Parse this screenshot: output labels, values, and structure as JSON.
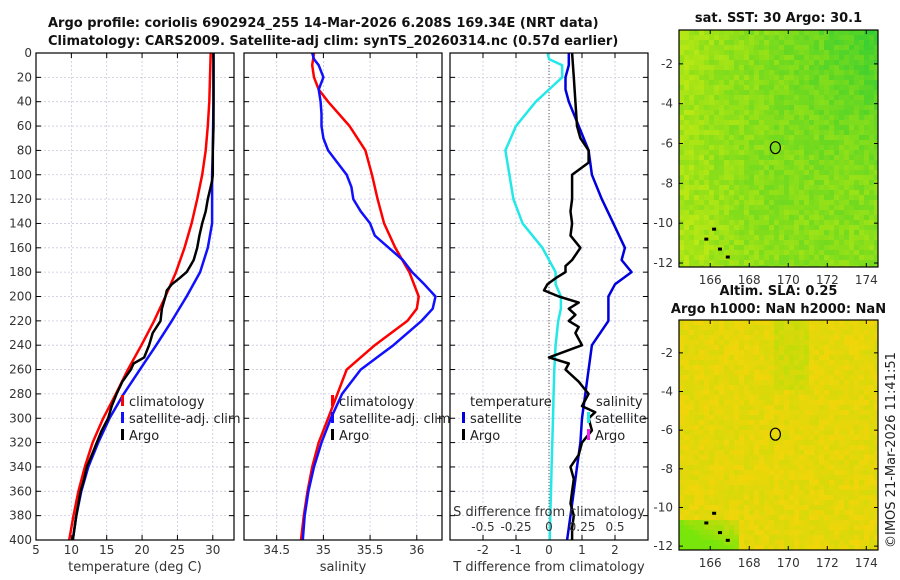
{
  "header": {
    "line1": "Argo profile: coriolis 6902924_255 14-Mar-2026 6.208S 169.34E (NRT data)",
    "line2": "Climatology: CARS2009. Satellite-adj clim: synTS_20260314.nc (0.57d earlier)"
  },
  "colors": {
    "climatology": "#ff0000",
    "satellite": "#1010ff",
    "argo": "#000000",
    "t_diff_satellite": "#0000dd",
    "s_diff_satellite": "#22e8e8",
    "s_diff_argo": "#ee22ee"
  },
  "chart_data": [
    {
      "type": "line",
      "id": "temperature",
      "xlabel": "temperature (deg C)",
      "ylabel": "",
      "xlim": [
        5,
        33
      ],
      "ylim": [
        400,
        0
      ],
      "xticks": [
        "5",
        "10",
        "15",
        "20",
        "25",
        "30"
      ],
      "xtick_values": [
        5,
        10,
        15,
        20,
        25,
        30
      ],
      "yticks": [
        "0",
        "20",
        "40",
        "60",
        "80",
        "100",
        "120",
        "140",
        "160",
        "180",
        "200",
        "220",
        "240",
        "260",
        "280",
        "300",
        "320",
        "340",
        "360",
        "380",
        "400"
      ],
      "grid": true,
      "legend": {
        "placement": "center-right",
        "entries": [
          "climatology",
          "satellite-adj. clim",
          "Argo"
        ]
      },
      "series": [
        {
          "name": "climatology",
          "color_key": "climatology",
          "depth": [
            0,
            20,
            40,
            60,
            80,
            100,
            120,
            140,
            160,
            180,
            200,
            220,
            240,
            260,
            280,
            300,
            320,
            340,
            360,
            380,
            400
          ],
          "values": [
            29.7,
            29.6,
            29.5,
            29.3,
            29.0,
            28.5,
            27.8,
            27.0,
            26.0,
            24.8,
            23.3,
            21.7,
            19.9,
            18.0,
            16.3,
            14.5,
            13.0,
            11.9,
            11.0,
            10.3,
            9.7
          ]
        },
        {
          "name": "satellite-adj. clim",
          "color_key": "satellite",
          "depth": [
            0,
            20,
            40,
            60,
            80,
            100,
            120,
            140,
            160,
            180,
            200,
            220,
            240,
            260,
            280,
            300,
            320,
            340,
            360,
            380,
            400
          ],
          "values": [
            30.1,
            30.1,
            30.1,
            30.05,
            30.0,
            29.9,
            29.9,
            29.9,
            29.3,
            28.2,
            26.3,
            24.2,
            22.0,
            19.7,
            17.4,
            15.4,
            13.8,
            12.4,
            11.4,
            10.7,
            10.2
          ]
        },
        {
          "name": "Argo",
          "color_key": "argo",
          "depth": [
            0,
            20,
            40,
            60,
            80,
            100,
            105,
            110,
            120,
            130,
            140,
            150,
            160,
            170,
            175,
            180,
            185,
            190,
            195,
            200,
            210,
            220,
            230,
            240,
            250,
            255,
            260,
            270,
            280,
            290,
            300,
            310,
            320,
            330,
            340,
            350,
            360,
            380,
            400
          ],
          "values": [
            30.1,
            30.1,
            30.1,
            30.1,
            30.0,
            30.0,
            29.9,
            29.7,
            29.3,
            29.0,
            28.5,
            28.1,
            27.8,
            27.3,
            26.8,
            26.3,
            25.3,
            24.2,
            23.5,
            23.3,
            22.8,
            22.6,
            21.5,
            21.0,
            20.3,
            18.8,
            18.4,
            17.2,
            16.4,
            15.7,
            15.2,
            14.3,
            13.6,
            12.9,
            12.2,
            11.8,
            11.3,
            10.7,
            10.2
          ]
        }
      ]
    },
    {
      "type": "line",
      "id": "salinity",
      "xlabel": "salinity",
      "xlim": [
        34.15,
        36.27
      ],
      "ylim": [
        400,
        0
      ],
      "xticks": [
        "34.5",
        "35",
        "35.5",
        "36"
      ],
      "xtick_values": [
        34.5,
        35,
        35.5,
        36
      ],
      "grid": true,
      "legend": {
        "placement": "center-left",
        "entries": [
          "climatology",
          "satellite-adj. clim",
          "Argo"
        ]
      },
      "series": [
        {
          "name": "climatology",
          "color_key": "climatology",
          "depth": [
            0,
            10,
            20,
            30,
            40,
            60,
            80,
            100,
            120,
            140,
            160,
            180,
            200,
            210,
            220,
            240,
            260,
            280,
            300,
            320,
            340,
            360,
            380,
            400
          ],
          "values": [
            34.9,
            34.88,
            34.9,
            34.95,
            35.05,
            35.28,
            35.45,
            35.52,
            35.58,
            35.65,
            35.77,
            35.92,
            36.02,
            36.0,
            35.9,
            35.55,
            35.25,
            35.15,
            35.05,
            34.95,
            34.88,
            34.83,
            34.79,
            34.76
          ]
        },
        {
          "name": "satellite-adj. clim",
          "color_key": "satellite",
          "depth": [
            0,
            5,
            10,
            20,
            30,
            40,
            50,
            60,
            70,
            80,
            90,
            100,
            110,
            120,
            130,
            140,
            150,
            160,
            170,
            180,
            190,
            200,
            210,
            220,
            240,
            260,
            280,
            300,
            320,
            340,
            360,
            380,
            400
          ],
          "values": [
            34.88,
            34.9,
            34.95,
            35.0,
            34.95,
            34.97,
            34.98,
            34.98,
            35.0,
            35.05,
            35.15,
            35.25,
            35.3,
            35.32,
            35.4,
            35.5,
            35.55,
            35.7,
            35.85,
            35.95,
            36.08,
            36.2,
            36.17,
            36.05,
            35.75,
            35.4,
            35.2,
            35.08,
            34.98,
            34.9,
            34.84,
            34.8,
            34.78
          ]
        }
      ]
    },
    {
      "type": "line",
      "id": "differences",
      "xlabel": "T difference from climatology",
      "xlim": [
        -3.0,
        3.0
      ],
      "xticks": [
        "-2",
        "-1",
        "0",
        "1",
        "2"
      ],
      "xtick_values": [
        -2,
        -1,
        0,
        1,
        2
      ],
      "secondary_xlabel": "S difference from climatology",
      "secondary_xlim": [
        -0.75,
        0.75
      ],
      "secondary_xticks": [
        "-0.5",
        "-0.25",
        "0",
        "0.25",
        "0.5"
      ],
      "secondary_xtick_values": [
        -0.5,
        -0.25,
        0,
        0.25,
        0.5
      ],
      "ylim": [
        400,
        0
      ],
      "grid": true,
      "legend": {
        "placement": "center",
        "temperature_header": "temperature",
        "salinity_header": "salinity",
        "temperature_entries": [
          "satellite",
          "Argo"
        ],
        "salinity_entries": [
          "satellite",
          "Argo"
        ]
      },
      "series": [
        {
          "name": "T satellite",
          "color_key": "t_diff_satellite",
          "depth": [
            0,
            10,
            20,
            30,
            40,
            60,
            80,
            100,
            120,
            140,
            160,
            170,
            180,
            190,
            200,
            220,
            240,
            260,
            280,
            300,
            320,
            340,
            360,
            380,
            400
          ],
          "values": [
            0.6,
            0.6,
            0.5,
            0.5,
            0.6,
            0.9,
            1.2,
            1.3,
            1.6,
            1.95,
            2.3,
            2.2,
            2.5,
            2.0,
            1.8,
            1.8,
            1.3,
            1.2,
            1.1,
            1.0,
            0.95,
            0.85,
            0.75,
            0.65,
            0.55
          ]
        },
        {
          "name": "T Argo",
          "color_key": "argo",
          "depth": [
            0,
            20,
            40,
            60,
            70,
            80,
            90,
            100,
            110,
            120,
            130,
            140,
            150,
            160,
            170,
            175,
            180,
            185,
            190,
            195,
            200,
            205,
            210,
            215,
            220,
            225,
            230,
            240,
            250,
            255,
            260,
            270,
            280,
            290,
            295,
            300,
            310,
            320,
            330,
            340,
            350,
            360,
            370,
            380,
            390,
            400
          ],
          "values": [
            0.7,
            0.75,
            0.8,
            0.85,
            0.95,
            1.2,
            1.2,
            0.7,
            0.7,
            0.7,
            0.65,
            0.7,
            0.65,
            0.95,
            0.7,
            0.5,
            0.5,
            0.2,
            -0.05,
            -0.15,
            0.3,
            0.9,
            0.6,
            0.8,
            0.6,
            0.9,
            0.8,
            1.0,
            0.0,
            0.6,
            0.5,
            0.9,
            1.2,
            1.0,
            1.4,
            1.2,
            1.3,
            1.0,
            0.9,
            0.65,
            0.75,
            0.7,
            0.65,
            0.75,
            0.7,
            0.7
          ]
        },
        {
          "name": "S satellite",
          "color_key": "s_diff_satellite",
          "depth": [
            0,
            5,
            10,
            20,
            30,
            40,
            60,
            80,
            100,
            120,
            140,
            160,
            180,
            190,
            200,
            210,
            220,
            240,
            260,
            280,
            300,
            320,
            340,
            360,
            380,
            400
          ],
          "values": [
            -0.01,
            0.0,
            0.1,
            0.1,
            0.0,
            -0.1,
            -0.25,
            -0.33,
            -0.3,
            -0.27,
            -0.2,
            -0.05,
            0.05,
            0.05,
            0.09,
            0.09,
            0.07,
            0.05,
            0.04,
            0.035,
            0.03,
            0.025,
            0.02,
            0.015,
            0.01,
            0.005
          ]
        }
      ]
    },
    {
      "type": "heatmap",
      "id": "sst-map",
      "title": "sat. SST: 30 Argo: 30.1",
      "xticks": [
        "166",
        "168",
        "170",
        "172",
        "174"
      ],
      "xtick_values": [
        166,
        168,
        170,
        172,
        174
      ],
      "yticks": [
        "-2",
        "-4",
        "-6",
        "-8",
        "-10",
        "-12"
      ],
      "ytick_values": [
        -2,
        -4,
        -6,
        -8,
        -10,
        -12
      ],
      "xlim": [
        164.4,
        174.6
      ],
      "ylim": [
        -12.2,
        -0.3
      ],
      "marker": {
        "lon": 169.34,
        "lat": -6.208
      },
      "description": "satellite SST field; green in NE (cooler/warmer contrast), yellow-green elsewhere"
    },
    {
      "type": "heatmap",
      "id": "sla-map",
      "title": "Altim. SLA: 0.25",
      "subtitle": "Argo h1000: NaN h2000: NaN",
      "xticks": [
        "166",
        "168",
        "170",
        "172",
        "174"
      ],
      "xtick_values": [
        166,
        168,
        170,
        172,
        174
      ],
      "yticks": [
        "-2",
        "-4",
        "-6",
        "-8",
        "-10",
        "-12"
      ],
      "ytick_values": [
        -2,
        -4,
        -6,
        -8,
        -10,
        -12
      ],
      "xlim": [
        164.4,
        174.6
      ],
      "ylim": [
        -12.2,
        -0.3
      ],
      "marker": {
        "lon": 169.34,
        "lat": -6.208
      },
      "description": "sea level anomaly field; mostly yellow/orange, greenish at SW corner"
    }
  ],
  "footer": {
    "copyright": "©IMOS 21-Mar-2026 11:41:51"
  }
}
